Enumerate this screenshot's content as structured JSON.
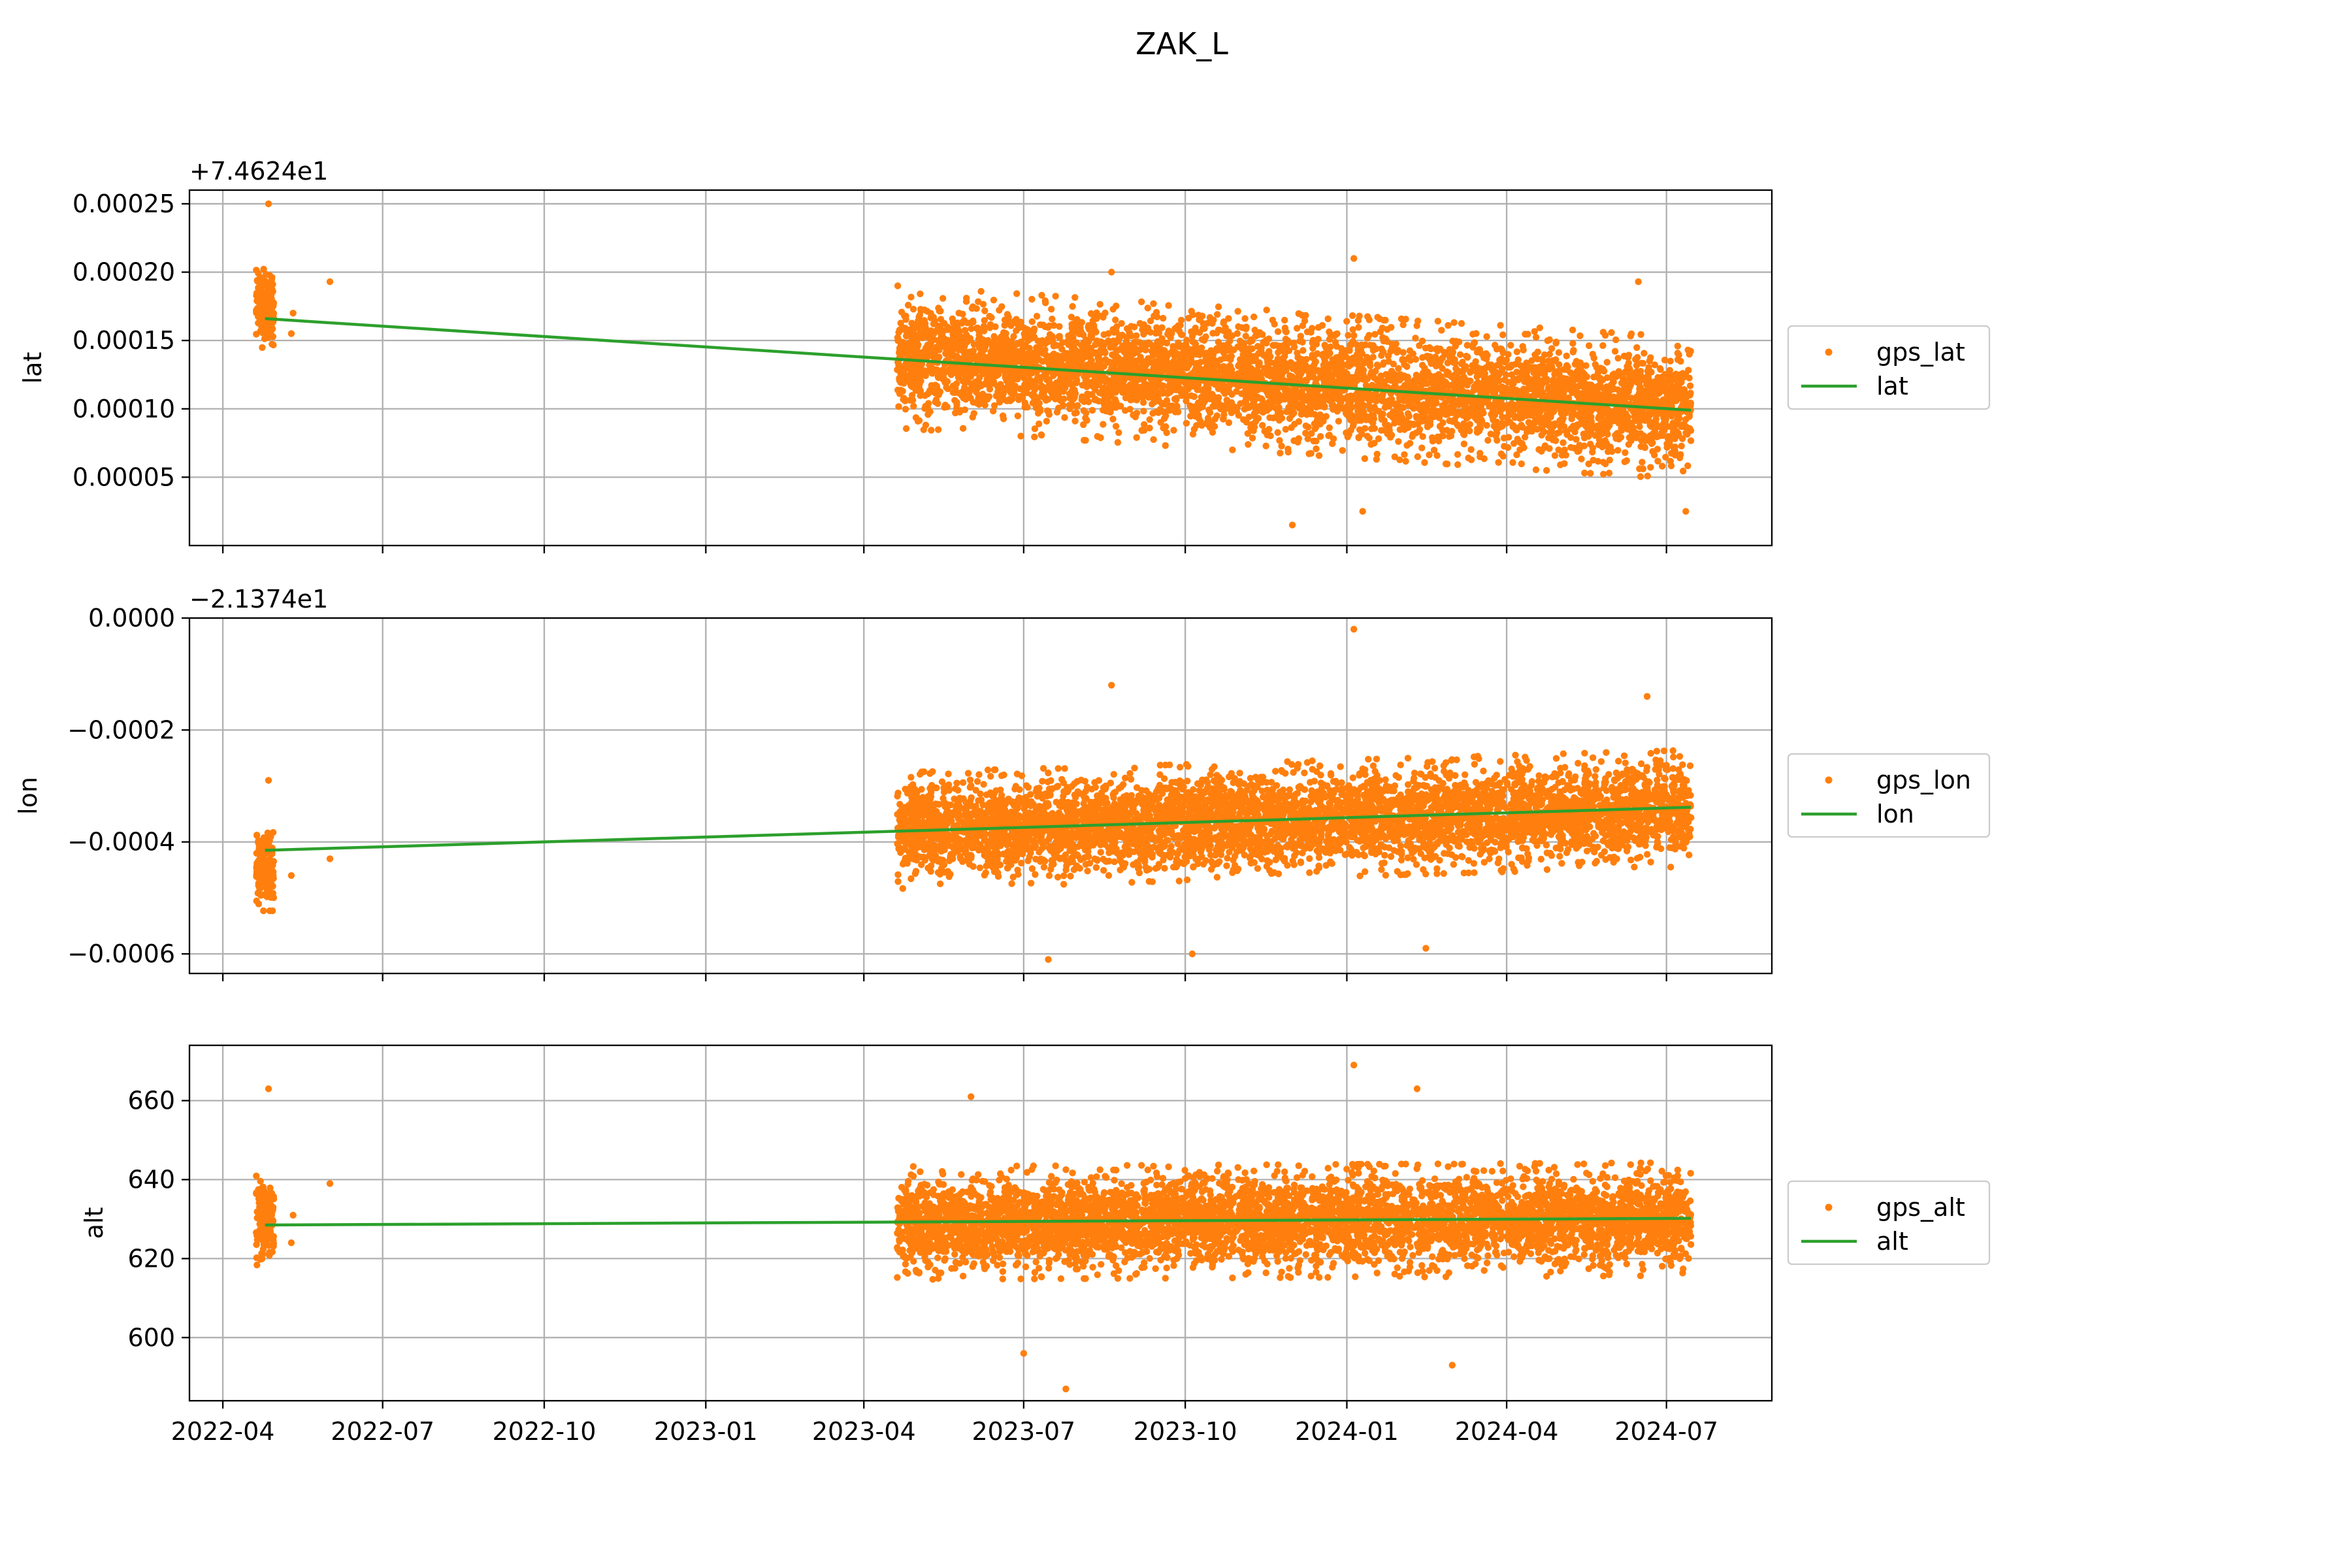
{
  "figure": {
    "title": "ZAK_L"
  },
  "colors": {
    "points": "#ff7f0e",
    "trend": "#2ca02c"
  },
  "x_ticks": [
    "2022-04",
    "2022-07",
    "2022-10",
    "2023-01",
    "2023-04",
    "2023-07",
    "2023-10",
    "2024-01",
    "2024-04",
    "2024-07"
  ],
  "chart_data": [
    {
      "type": "scatter",
      "ylabel": "lat",
      "offset_label": "+7.4624e1",
      "ylim": [
        0.0,
        0.00026
      ],
      "yticks": [
        5e-05,
        0.0001,
        0.00015,
        0.0002,
        0.00025
      ],
      "ytick_labels": [
        "0.00005",
        "0.00010",
        "0.00015",
        "0.00020",
        "0.00025"
      ],
      "grid": true,
      "legend_position": "right",
      "xlim": [
        "2022-03-13",
        "2024-08-30"
      ],
      "series": [
        {
          "name": "gps_lat",
          "kind": "points",
          "clusters": [
            {
              "x_range": [
                "2022-04-20",
                "2022-04-30"
              ],
              "center": 0.000175,
              "spread": 2.5e-05,
              "n": 160
            },
            {
              "x_range": [
                "2023-04-20",
                "2024-07-15"
              ],
              "center_start": 0.000138,
              "center_end": 0.0001,
              "spread": 4e-05,
              "n": 5000
            }
          ],
          "outliers": [
            [
              "2022-04-27",
              0.00025
            ],
            [
              "2022-05-10",
              0.000155
            ],
            [
              "2022-05-11",
              0.00017
            ],
            [
              "2022-06-01",
              0.000193
            ],
            [
              "2023-08-20",
              0.0002
            ],
            [
              "2024-01-05",
              0.00021
            ],
            [
              "2023-12-01",
              1.5e-05
            ],
            [
              "2024-06-15",
              0.000193
            ],
            [
              "2024-01-10",
              2.5e-05
            ],
            [
              "2024-07-12",
              2.5e-05
            ]
          ]
        },
        {
          "name": "lat",
          "kind": "line",
          "x": [
            "2022-04-25",
            "2024-07-15"
          ],
          "y": [
            0.000166,
            9.9e-05
          ]
        }
      ]
    },
    {
      "type": "scatter",
      "ylabel": "lon",
      "offset_label": "−2.1374e1",
      "ylim": [
        -0.000635,
        0.0
      ],
      "yticks": [
        -0.0006,
        -0.0004,
        -0.0002,
        0.0
      ],
      "ytick_labels": [
        "−0.0006",
        "−0.0004",
        "−0.0002",
        "0.0000"
      ],
      "grid": true,
      "legend_position": "right",
      "xlim": [
        "2022-03-13",
        "2024-08-30"
      ],
      "series": [
        {
          "name": "gps_lon",
          "kind": "points",
          "clusters": [
            {
              "x_range": [
                "2022-04-20",
                "2022-04-30"
              ],
              "center": -0.000445,
              "spread": 6e-05,
              "n": 160
            },
            {
              "x_range": [
                "2023-04-20",
                "2024-07-15"
              ],
              "center_start": -0.00038,
              "center_end": -0.00034,
              "spread": 8e-05,
              "n": 5000
            }
          ],
          "outliers": [
            [
              "2022-04-27",
              -0.00029
            ],
            [
              "2022-05-10",
              -0.00046
            ],
            [
              "2022-06-01",
              -0.00043
            ],
            [
              "2024-01-05",
              -2e-05
            ],
            [
              "2023-08-20",
              -0.00012
            ],
            [
              "2023-07-15",
              -0.00061
            ],
            [
              "2023-10-05",
              -0.0006
            ],
            [
              "2024-02-15",
              -0.00059
            ],
            [
              "2024-06-20",
              -0.00014
            ]
          ]
        },
        {
          "name": "lon",
          "kind": "line",
          "x": [
            "2022-04-25",
            "2024-07-15"
          ],
          "y": [
            -0.000415,
            -0.000338
          ]
        }
      ]
    },
    {
      "type": "scatter",
      "ylabel": "alt",
      "offset_label": "",
      "ylim": [
        584,
        674
      ],
      "yticks": [
        600,
        620,
        640,
        660
      ],
      "ytick_labels": [
        "600",
        "620",
        "640",
        "660"
      ],
      "grid": true,
      "legend_position": "right",
      "xlim": [
        "2022-03-13",
        "2024-08-30"
      ],
      "series": [
        {
          "name": "gps_alt",
          "kind": "points",
          "clusters": [
            {
              "x_range": [
                "2022-04-20",
                "2022-04-30"
              ],
              "center": 630,
              "spread": 9,
              "n": 160
            },
            {
              "x_range": [
                "2023-04-20",
                "2024-07-15"
              ],
              "center_start": 629,
              "center_end": 630,
              "spread": 11,
              "n": 5000
            }
          ],
          "outliers": [
            [
              "2022-04-27",
              663
            ],
            [
              "2022-05-10",
              624
            ],
            [
              "2022-05-11",
              631
            ],
            [
              "2022-06-01",
              639
            ],
            [
              "2023-07-25",
              587
            ],
            [
              "2024-01-05",
              669
            ],
            [
              "2024-02-10",
              663
            ],
            [
              "2024-03-01",
              593
            ],
            [
              "2023-06-01",
              661
            ],
            [
              "2023-07-01",
              596
            ]
          ]
        },
        {
          "name": "alt",
          "kind": "line",
          "x": [
            "2022-04-25",
            "2024-07-15"
          ],
          "y": [
            628.5,
            630.2
          ]
        }
      ]
    }
  ]
}
